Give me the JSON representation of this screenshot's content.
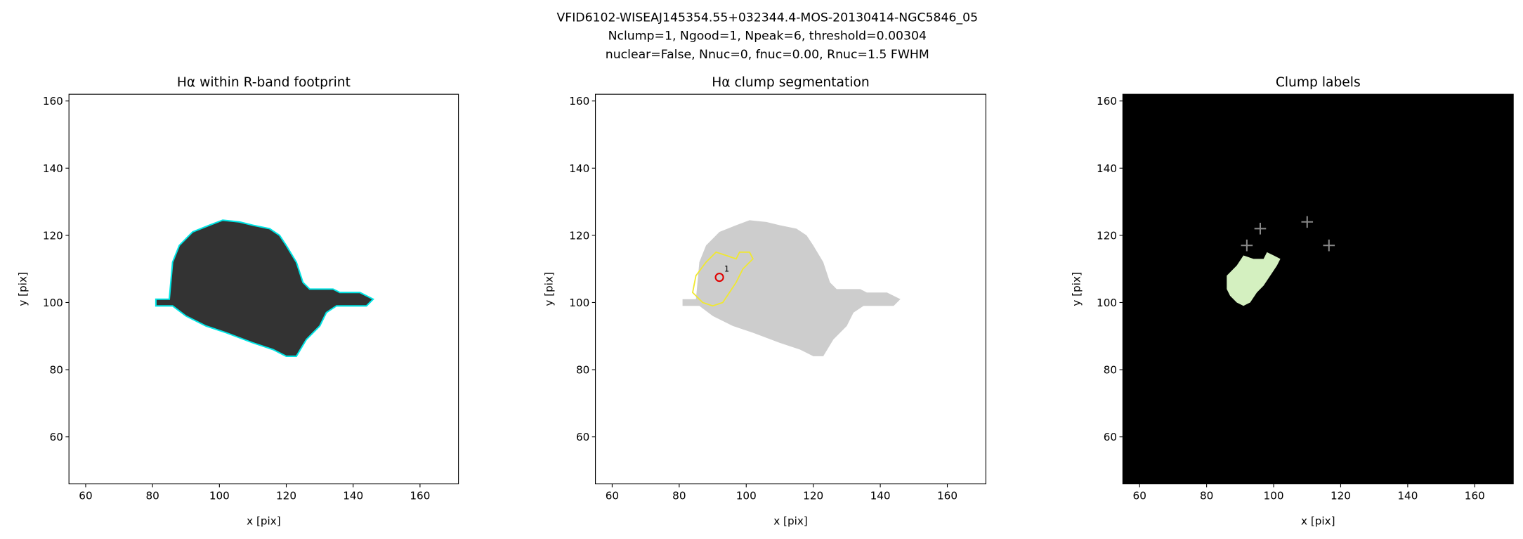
{
  "suptitle": [
    "VFID6102-WISEAJ145354.55+032344.4-MOS-20130414-NGC5846_05",
    "Nclump=1, Ngood=1, Npeak=6, threshold=0.00304",
    "nuclear=False, Nnuc=0, fnuc=0.00, Rnuc=1.5 FWHM"
  ],
  "chart_data": [
    {
      "type": "image",
      "title": "Hα within R-band footprint",
      "xlabel": "x [pix]",
      "ylabel": "y [pix]",
      "xlim": [
        55,
        171.5
      ],
      "ylim": [
        46,
        162
      ],
      "xticks": [
        60,
        80,
        100,
        120,
        140,
        160
      ],
      "yticks": [
        60,
        80,
        100,
        120,
        140,
        160
      ],
      "background": "#ffffff",
      "fill": "#333333",
      "contour_color": "#00e5e5"
    },
    {
      "type": "image",
      "title": "Hα clump segmentation",
      "xlabel": "x [pix]",
      "ylabel": "y [pix]",
      "xlim": [
        55,
        171.5
      ],
      "ylim": [
        46,
        162
      ],
      "xticks": [
        60,
        80,
        100,
        120,
        140,
        160
      ],
      "yticks": [
        60,
        80,
        100,
        120,
        140,
        160
      ],
      "background": "#ffffff",
      "fill": "#cdcdcd",
      "contour_color": "#f0e830",
      "series": [
        {
          "name": "clumps",
          "color": "#e00000",
          "x": [
            92
          ],
          "values": [
            107.5
          ],
          "labels": [
            "1"
          ]
        }
      ]
    },
    {
      "type": "image",
      "title": "Clump labels",
      "xlabel": "x [pix]",
      "ylabel": "y [pix]",
      "xlim": [
        55,
        171.5
      ],
      "ylim": [
        46,
        162
      ],
      "xticks": [
        60,
        80,
        100,
        120,
        140,
        160
      ],
      "yticks": [
        60,
        80,
        100,
        120,
        140,
        160
      ],
      "background": "#000000",
      "clump_color": "#d4f0c0",
      "series": [
        {
          "name": "peaks",
          "color": "#888888",
          "x": [
            92,
            96,
            110,
            116.5
          ],
          "values": [
            117,
            122,
            124,
            117
          ]
        }
      ]
    }
  ]
}
